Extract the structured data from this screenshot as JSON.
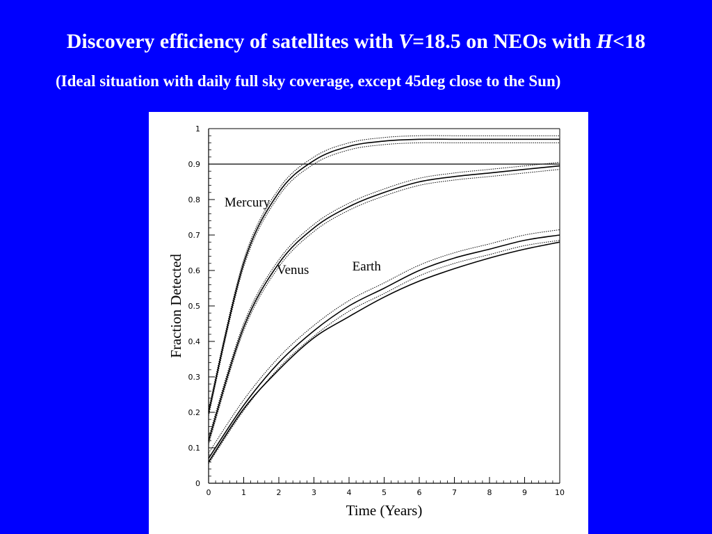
{
  "slide": {
    "title_pre": "Discovery efficiency of satellites with ",
    "title_v": "V",
    "title_mid": "=18.5 on NEOs with ",
    "title_h": "H",
    "title_post": "<18",
    "subtitle": "(Ideal situation with daily full sky coverage, except 45deg close to the Sun)",
    "background_color": "#0000ff",
    "text_color": "#ffffff"
  },
  "chart_data": {
    "type": "line",
    "title": "",
    "xlabel": "Time (Years)",
    "ylabel": "Fraction Detected",
    "xlim": [
      0,
      10
    ],
    "ylim": [
      0,
      1
    ],
    "xticks": [
      "0",
      "1",
      "2",
      "3",
      "4",
      "5",
      "6",
      "7",
      "8",
      "9",
      "10"
    ],
    "yticks": [
      "0",
      "0.1",
      "0.2",
      "0.3",
      "0.4",
      "0.5",
      "0.6",
      "0.7",
      "0.8",
      "0.9",
      "1"
    ],
    "reference_line": {
      "y": 0.9
    },
    "grid": false,
    "series": [
      {
        "name": "Mercury",
        "x": [
          0,
          1,
          2,
          3,
          4,
          5,
          6,
          7,
          8,
          9,
          10
        ],
        "y": [
          0.2,
          0.62,
          0.82,
          0.91,
          0.95,
          0.965,
          0.97,
          0.97,
          0.97,
          0.97,
          0.97
        ],
        "band": 0.01
      },
      {
        "name": "Venus",
        "x": [
          0,
          1,
          2,
          3,
          4,
          5,
          6,
          7,
          8,
          9,
          10
        ],
        "y": [
          0.12,
          0.44,
          0.62,
          0.72,
          0.78,
          0.82,
          0.85,
          0.865,
          0.875,
          0.885,
          0.895
        ],
        "band": 0.01
      },
      {
        "name": "Earth",
        "x": [
          0,
          1,
          2,
          3,
          4,
          5,
          6,
          7,
          8,
          9,
          10
        ],
        "y": [
          0.07,
          0.22,
          0.34,
          0.43,
          0.5,
          0.55,
          0.6,
          0.635,
          0.66,
          0.685,
          0.7
        ],
        "band": 0.015
      },
      {
        "name": "",
        "x": [
          0,
          1,
          2,
          3,
          4,
          5,
          6,
          7,
          8,
          9,
          10
        ],
        "y": [
          0.06,
          0.21,
          0.32,
          0.41,
          0.47,
          0.525,
          0.57,
          0.605,
          0.635,
          0.66,
          0.68
        ],
        "band": 0
      }
    ]
  }
}
